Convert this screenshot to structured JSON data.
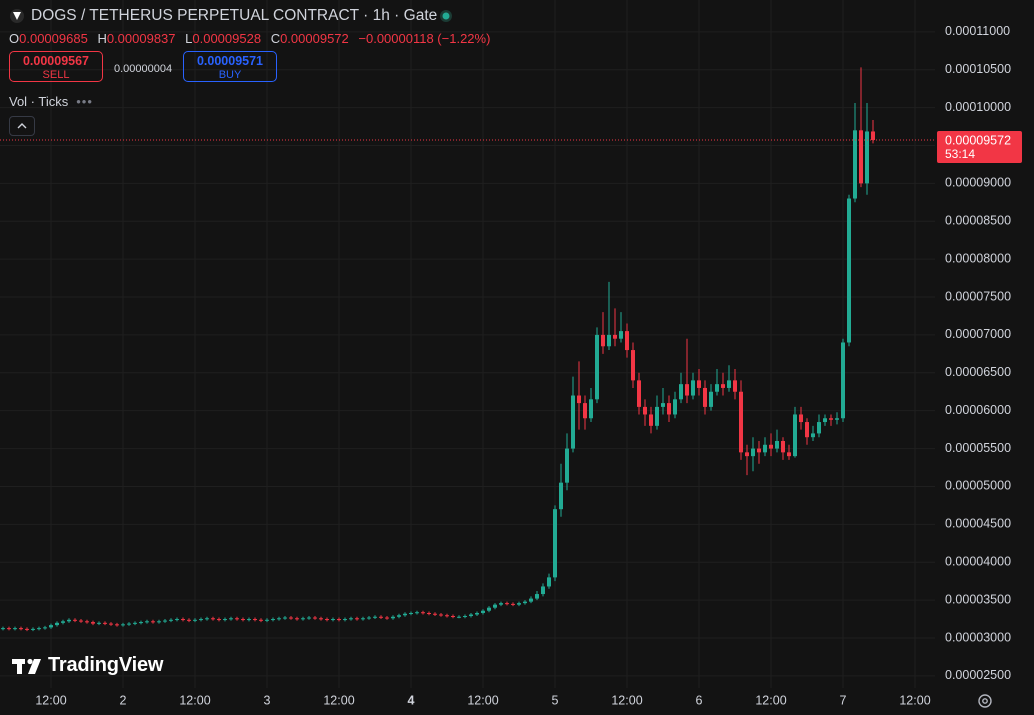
{
  "chart_data": {
    "type": "candlestick",
    "title": "DOGS / TETHERUS PERPETUAL CONTRACT · 1h · Gate",
    "ohlc_labels": [
      "O",
      "H",
      "L",
      "C"
    ],
    "change": "−0.00000118 (−1.22%)",
    "sell": {
      "price": "0.00009567",
      "label": "SELL"
    },
    "spread": "0.00000004",
    "buy": {
      "price": "0.00009571",
      "label": "BUY"
    },
    "indicator": "Vol · Ticks",
    "countdown": "53:14",
    "brand": "TradingView",
    "up_color": "#22ab94",
    "down_color": "#f23645",
    "grid": true,
    "ylim": [
      2.34e-05,
      0.0001142
    ],
    "yticks": [
      {
        "value": 0.00011,
        "label": "0.00011000"
      },
      {
        "value": 0.000105,
        "label": "0.00010500"
      },
      {
        "value": 0.0001,
        "label": "0.00010000"
      },
      {
        "value": 9.5e-05,
        "label": "0.00009500"
      },
      {
        "value": 9e-05,
        "label": "0.00009000"
      },
      {
        "value": 8.5e-05,
        "label": "0.00008500"
      },
      {
        "value": 8e-05,
        "label": "0.00008000"
      },
      {
        "value": 7.5e-05,
        "label": "0.00007500"
      },
      {
        "value": 7e-05,
        "label": "0.00007000"
      },
      {
        "value": 6.5e-05,
        "label": "0.00006500"
      },
      {
        "value": 6e-05,
        "label": "0.00006000"
      },
      {
        "value": 5.5e-05,
        "label": "0.00005500"
      },
      {
        "value": 5e-05,
        "label": "0.00005000"
      },
      {
        "value": 4.5e-05,
        "label": "0.00004500"
      },
      {
        "value": 4e-05,
        "label": "0.00004000"
      },
      {
        "value": 3.5e-05,
        "label": "0.00003500"
      },
      {
        "value": 3e-05,
        "label": "0.00003000"
      },
      {
        "value": 2.5e-05,
        "label": "0.00002500"
      }
    ],
    "categories": [
      null,
      null,
      null,
      null,
      null,
      null,
      null,
      null,
      "12:00",
      null,
      null,
      null,
      null,
      null,
      null,
      null,
      null,
      null,
      null,
      null,
      "2",
      null,
      null,
      null,
      null,
      null,
      null,
      null,
      null,
      null,
      null,
      null,
      "12:00",
      null,
      null,
      null,
      null,
      null,
      null,
      null,
      null,
      null,
      null,
      null,
      "3",
      null,
      null,
      null,
      null,
      null,
      null,
      null,
      null,
      null,
      null,
      null,
      "12:00",
      null,
      null,
      null,
      null,
      null,
      null,
      null,
      null,
      null,
      null,
      null,
      "4",
      null,
      null,
      null,
      null,
      null,
      null,
      null,
      null,
      null,
      null,
      null,
      "12:00",
      null,
      null,
      null,
      null,
      null,
      null,
      null,
      null,
      null,
      null,
      null,
      "5",
      null,
      null,
      null,
      null,
      null,
      null,
      null,
      null,
      null,
      null,
      null,
      "12:00",
      null,
      null,
      null,
      null,
      null,
      null,
      null,
      null,
      null,
      null,
      null,
      "6",
      null,
      null,
      null,
      null,
      null,
      null,
      null,
      null,
      null,
      null,
      null,
      "12:00",
      null,
      null,
      null,
      null,
      null,
      null,
      null,
      null,
      null,
      null,
      null,
      "7",
      null,
      null,
      null,
      null,
      null,
      null,
      null,
      null,
      null,
      null,
      null,
      "12:00"
    ],
    "open": [
      3.12e-05,
      3.13e-05,
      3.12e-05,
      3.13e-05,
      3.12e-05,
      3.11e-05,
      3.12e-05,
      3.13e-05,
      3.14e-05,
      3.17e-05,
      3.2e-05,
      3.22e-05,
      3.24e-05,
      3.23e-05,
      3.22e-05,
      3.21e-05,
      3.19e-05,
      3.2e-05,
      3.19e-05,
      3.18e-05,
      3.17e-05,
      3.18e-05,
      3.19e-05,
      3.2e-05,
      3.21e-05,
      3.22e-05,
      3.21e-05,
      3.22e-05,
      3.23e-05,
      3.24e-05,
      3.25e-05,
      3.24e-05,
      3.23e-05,
      3.24e-05,
      3.25e-05,
      3.26e-05,
      3.25e-05,
      3.24e-05,
      3.25e-05,
      3.26e-05,
      3.25e-05,
      3.24e-05,
      3.25e-05,
      3.24e-05,
      3.23e-05,
      3.24e-05,
      3.25e-05,
      3.26e-05,
      3.27e-05,
      3.26e-05,
      3.25e-05,
      3.26e-05,
      3.27e-05,
      3.26e-05,
      3.25e-05,
      3.24e-05,
      3.25e-05,
      3.24e-05,
      3.25e-05,
      3.26e-05,
      3.25e-05,
      3.26e-05,
      3.27e-05,
      3.28e-05,
      3.27e-05,
      3.26e-05,
      3.28e-05,
      3.3e-05,
      3.32e-05,
      3.33e-05,
      3.34e-05,
      3.33e-05,
      3.32e-05,
      3.31e-05,
      3.3e-05,
      3.29e-05,
      3.28e-05,
      3.28e-05,
      3.29e-05,
      3.31e-05,
      3.33e-05,
      3.36e-05,
      3.4e-05,
      3.44e-05,
      3.46e-05,
      3.45e-05,
      3.44e-05,
      3.46e-05,
      3.48e-05,
      3.52e-05,
      3.58e-05,
      3.68e-05,
      3.8e-05,
      4.7e-05,
      5.05e-05,
      5.5e-05,
      6.2e-05,
      6.1e-05,
      5.9e-05,
      6.15e-05,
      7e-05,
      6.85e-05,
      7e-05,
      6.95e-05,
      7.05e-05,
      6.8e-05,
      6.4e-05,
      6.05e-05,
      5.95e-05,
      5.8e-05,
      6.05e-05,
      6.1e-05,
      5.95e-05,
      6.15e-05,
      6.35e-05,
      6.2e-05,
      6.4e-05,
      6.3e-05,
      6.05e-05,
      6.25e-05,
      6.35e-05,
      6.3e-05,
      6.4e-05,
      6.25e-05,
      5.45e-05,
      5.4e-05,
      5.5e-05,
      5.45e-05,
      5.55e-05,
      5.5e-05,
      5.6e-05,
      5.45e-05,
      5.4e-05,
      5.95e-05,
      5.85e-05,
      5.65e-05,
      5.7e-05,
      5.85e-05,
      5.9e-05,
      5.88e-05,
      5.9e-05,
      6.9e-05,
      8.8e-05,
      9.7e-05,
      9e-05,
      9.685e-05,
      null,
      null,
      null,
      null,
      null,
      null,
      null
    ],
    "high": [
      3.15e-05,
      3.15e-05,
      3.15e-05,
      3.15e-05,
      3.14e-05,
      3.14e-05,
      3.15e-05,
      3.16e-05,
      3.19e-05,
      3.22e-05,
      3.24e-05,
      3.26e-05,
      3.26e-05,
      3.25e-05,
      3.24e-05,
      3.23e-05,
      3.22e-05,
      3.22e-05,
      3.21e-05,
      3.2e-05,
      3.2e-05,
      3.21e-05,
      3.22e-05,
      3.23e-05,
      3.24e-05,
      3.24e-05,
      3.24e-05,
      3.25e-05,
      3.26e-05,
      3.27e-05,
      3.27e-05,
      3.26e-05,
      3.26e-05,
      3.27e-05,
      3.28e-05,
      3.28e-05,
      3.27e-05,
      3.27e-05,
      3.28e-05,
      3.28e-05,
      3.27e-05,
      3.27e-05,
      3.27e-05,
      3.26e-05,
      3.26e-05,
      3.27e-05,
      3.28e-05,
      3.29e-05,
      3.29e-05,
      3.28e-05,
      3.28e-05,
      3.29e-05,
      3.29e-05,
      3.28e-05,
      3.27e-05,
      3.27e-05,
      3.27e-05,
      3.27e-05,
      3.28e-05,
      3.28e-05,
      3.28e-05,
      3.29e-05,
      3.3e-05,
      3.3e-05,
      3.29e-05,
      3.3e-05,
      3.32e-05,
      3.34e-05,
      3.35e-05,
      3.36e-05,
      3.36e-05,
      3.35e-05,
      3.34e-05,
      3.33e-05,
      3.32e-05,
      3.31e-05,
      3.3e-05,
      3.31e-05,
      3.33e-05,
      3.35e-05,
      3.38e-05,
      3.42e-05,
      3.46e-05,
      3.48e-05,
      3.48e-05,
      3.47e-05,
      3.48e-05,
      3.5e-05,
      3.55e-05,
      3.62e-05,
      3.72e-05,
      3.85e-05,
      4.75e-05,
      5.3e-05,
      5.7e-05,
      6.45e-05,
      6.65e-05,
      6.2e-05,
      6.3e-05,
      7.1e-05,
      7.3e-05,
      7.7e-05,
      7.35e-05,
      7.3e-05,
      7.15e-05,
      6.9e-05,
      6.5e-05,
      6.15e-05,
      6.05e-05,
      6.2e-05,
      6.3e-05,
      6.2e-05,
      6.25e-05,
      6.5e-05,
      6.95e-05,
      6.5e-05,
      6.55e-05,
      6.4e-05,
      6.35e-05,
      6.55e-05,
      6.5e-05,
      6.6e-05,
      6.55e-05,
      6.4e-05,
      5.55e-05,
      5.65e-05,
      5.6e-05,
      5.65e-05,
      5.7e-05,
      5.75e-05,
      5.65e-05,
      5.55e-05,
      6.05e-05,
      6.05e-05,
      5.9e-05,
      5.8e-05,
      5.95e-05,
      5.95e-05,
      5.95e-05,
      5.98e-05,
      6.95e-05,
      8.85e-05,
      0.0001006,
      0.0001053,
      0.0001006,
      9.837e-05,
      null,
      null,
      null,
      null,
      null,
      null,
      null
    ],
    "low": [
      3.1e-05,
      3.1e-05,
      3.1e-05,
      3.1e-05,
      3.09e-05,
      3.09e-05,
      3.1e-05,
      3.11e-05,
      3.12e-05,
      3.15e-05,
      3.18e-05,
      3.2e-05,
      3.21e-05,
      3.2e-05,
      3.19e-05,
      3.17e-05,
      3.17e-05,
      3.17e-05,
      3.16e-05,
      3.15e-05,
      3.15e-05,
      3.16e-05,
      3.17e-05,
      3.18e-05,
      3.19e-05,
      3.19e-05,
      3.19e-05,
      3.2e-05,
      3.21e-05,
      3.22e-05,
      3.22e-05,
      3.21e-05,
      3.21e-05,
      3.22e-05,
      3.23e-05,
      3.23e-05,
      3.22e-05,
      3.22e-05,
      3.23e-05,
      3.23e-05,
      3.22e-05,
      3.22e-05,
      3.22e-05,
      3.21e-05,
      3.21e-05,
      3.22e-05,
      3.23e-05,
      3.24e-05,
      3.24e-05,
      3.23e-05,
      3.23e-05,
      3.24e-05,
      3.24e-05,
      3.23e-05,
      3.22e-05,
      3.22e-05,
      3.22e-05,
      3.22e-05,
      3.23e-05,
      3.23e-05,
      3.23e-05,
      3.24e-05,
      3.25e-05,
      3.25e-05,
      3.24e-05,
      3.24e-05,
      3.26e-05,
      3.28e-05,
      3.3e-05,
      3.31e-05,
      3.31e-05,
      3.3e-05,
      3.29e-05,
      3.28e-05,
      3.27e-05,
      3.26e-05,
      3.26e-05,
      3.26e-05,
      3.27e-05,
      3.29e-05,
      3.31e-05,
      3.34e-05,
      3.38e-05,
      3.42e-05,
      3.43e-05,
      3.42e-05,
      3.42e-05,
      3.44e-05,
      3.46e-05,
      3.5e-05,
      3.55e-05,
      3.65e-05,
      3.75e-05,
      4.6e-05,
      4.95e-05,
      5.45e-05,
      5.75e-05,
      5.75e-05,
      5.85e-05,
      6.1e-05,
      6.75e-05,
      6.8e-05,
      6.85e-05,
      6.9e-05,
      6.7e-05,
      6.3e-05,
      5.95e-05,
      5.8e-05,
      5.7e-05,
      5.75e-05,
      5.95e-05,
      5.85e-05,
      5.9e-05,
      6.1e-05,
      6.1e-05,
      6.15e-05,
      6.2e-05,
      5.95e-05,
      6e-05,
      6.2e-05,
      6.2e-05,
      6.25e-05,
      6.15e-05,
      5.35e-05,
      5.15e-05,
      5.2e-05,
      5.3e-05,
      5.4e-05,
      5.4e-05,
      5.45e-05,
      5.35e-05,
      5.35e-05,
      5.38e-05,
      5.75e-05,
      5.55e-05,
      5.6e-05,
      5.65e-05,
      5.8e-05,
      5.8e-05,
      5.82e-05,
      5.85e-05,
      6.85e-05,
      8.75e-05,
      8.95e-05,
      8.85e-05,
      9.528e-05,
      null,
      null,
      null,
      null,
      null,
      null,
      null
    ],
    "close": [
      3.13e-05,
      3.12e-05,
      3.13e-05,
      3.12e-05,
      3.11e-05,
      3.12e-05,
      3.13e-05,
      3.14e-05,
      3.17e-05,
      3.2e-05,
      3.22e-05,
      3.24e-05,
      3.23e-05,
      3.22e-05,
      3.21e-05,
      3.19e-05,
      3.2e-05,
      3.19e-05,
      3.18e-05,
      3.17e-05,
      3.18e-05,
      3.19e-05,
      3.2e-05,
      3.21e-05,
      3.22e-05,
      3.21e-05,
      3.22e-05,
      3.23e-05,
      3.24e-05,
      3.25e-05,
      3.24e-05,
      3.23e-05,
      3.24e-05,
      3.25e-05,
      3.26e-05,
      3.25e-05,
      3.24e-05,
      3.25e-05,
      3.26e-05,
      3.25e-05,
      3.24e-05,
      3.25e-05,
      3.24e-05,
      3.23e-05,
      3.24e-05,
      3.25e-05,
      3.26e-05,
      3.27e-05,
      3.26e-05,
      3.25e-05,
      3.26e-05,
      3.27e-05,
      3.26e-05,
      3.25e-05,
      3.24e-05,
      3.25e-05,
      3.24e-05,
      3.25e-05,
      3.26e-05,
      3.25e-05,
      3.26e-05,
      3.27e-05,
      3.28e-05,
      3.27e-05,
      3.26e-05,
      3.28e-05,
      3.3e-05,
      3.32e-05,
      3.33e-05,
      3.34e-05,
      3.33e-05,
      3.32e-05,
      3.31e-05,
      3.3e-05,
      3.29e-05,
      3.28e-05,
      3.28e-05,
      3.29e-05,
      3.31e-05,
      3.33e-05,
      3.36e-05,
      3.4e-05,
      3.44e-05,
      3.46e-05,
      3.45e-05,
      3.44e-05,
      3.46e-05,
      3.48e-05,
      3.52e-05,
      3.58e-05,
      3.68e-05,
      3.8e-05,
      4.7e-05,
      5.05e-05,
      5.5e-05,
      6.2e-05,
      6.1e-05,
      5.9e-05,
      6.15e-05,
      7e-05,
      6.85e-05,
      7e-05,
      6.95e-05,
      7.05e-05,
      6.8e-05,
      6.4e-05,
      6.05e-05,
      5.95e-05,
      5.8e-05,
      6.05e-05,
      6.1e-05,
      5.95e-05,
      6.15e-05,
      6.35e-05,
      6.2e-05,
      6.4e-05,
      6.3e-05,
      6.05e-05,
      6.25e-05,
      6.35e-05,
      6.3e-05,
      6.4e-05,
      6.25e-05,
      5.45e-05,
      5.4e-05,
      5.5e-05,
      5.45e-05,
      5.55e-05,
      5.5e-05,
      5.6e-05,
      5.45e-05,
      5.4e-05,
      5.95e-05,
      5.85e-05,
      5.65e-05,
      5.7e-05,
      5.85e-05,
      5.9e-05,
      5.88e-05,
      5.9e-05,
      6.9e-05,
      8.8e-05,
      9.7e-05,
      9e-05,
      9.685e-05,
      9.572e-05,
      null,
      null,
      null,
      null,
      null,
      null,
      null
    ]
  }
}
